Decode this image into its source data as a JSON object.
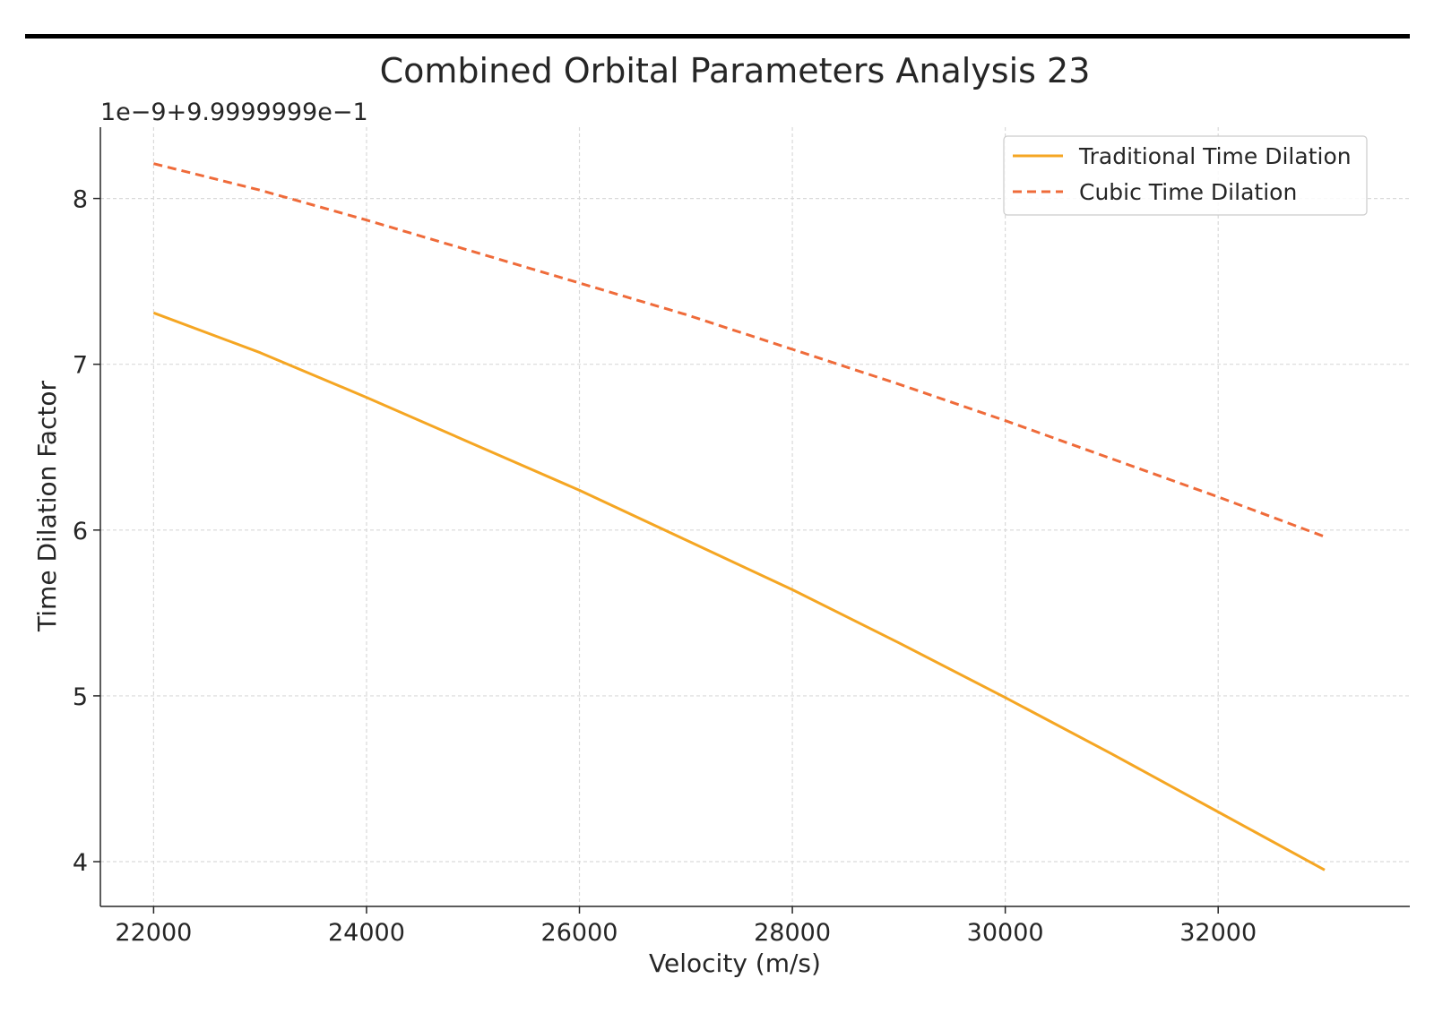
{
  "chart_data": {
    "type": "line",
    "title": "Combined Orbital Parameters Analysis 23",
    "offset_label": "1e−9+9.9999999e−1",
    "xlabel": "Velocity (m/s)",
    "ylabel": "Time Dilation Factor",
    "xlim": [
      21500,
      33800
    ],
    "ylim": [
      3.73,
      8.43
    ],
    "xticks": [
      22000,
      24000,
      26000,
      28000,
      30000,
      32000
    ],
    "yticks": [
      4,
      5,
      6,
      7,
      8
    ],
    "grid": true,
    "legend_position": "top-right",
    "series": [
      {
        "name": "Traditional Time Dilation",
        "style": "solid",
        "color": "#f5a623",
        "x": [
          22000,
          23000,
          24000,
          25000,
          26000,
          27000,
          28000,
          29000,
          30000,
          31000,
          32000,
          33000
        ],
        "y": [
          7.31,
          7.07,
          6.8,
          6.52,
          6.24,
          5.94,
          5.64,
          5.32,
          4.99,
          4.65,
          4.3,
          3.95
        ]
      },
      {
        "name": "Cubic Time Dilation",
        "style": "dashed",
        "color": "#ef6b3a",
        "x": [
          22000,
          23000,
          24000,
          25000,
          26000,
          27000,
          28000,
          29000,
          30000,
          31000,
          32000,
          33000
        ],
        "y": [
          8.21,
          8.05,
          7.87,
          7.68,
          7.49,
          7.3,
          7.09,
          6.88,
          6.66,
          6.43,
          6.2,
          5.96
        ]
      }
    ]
  }
}
